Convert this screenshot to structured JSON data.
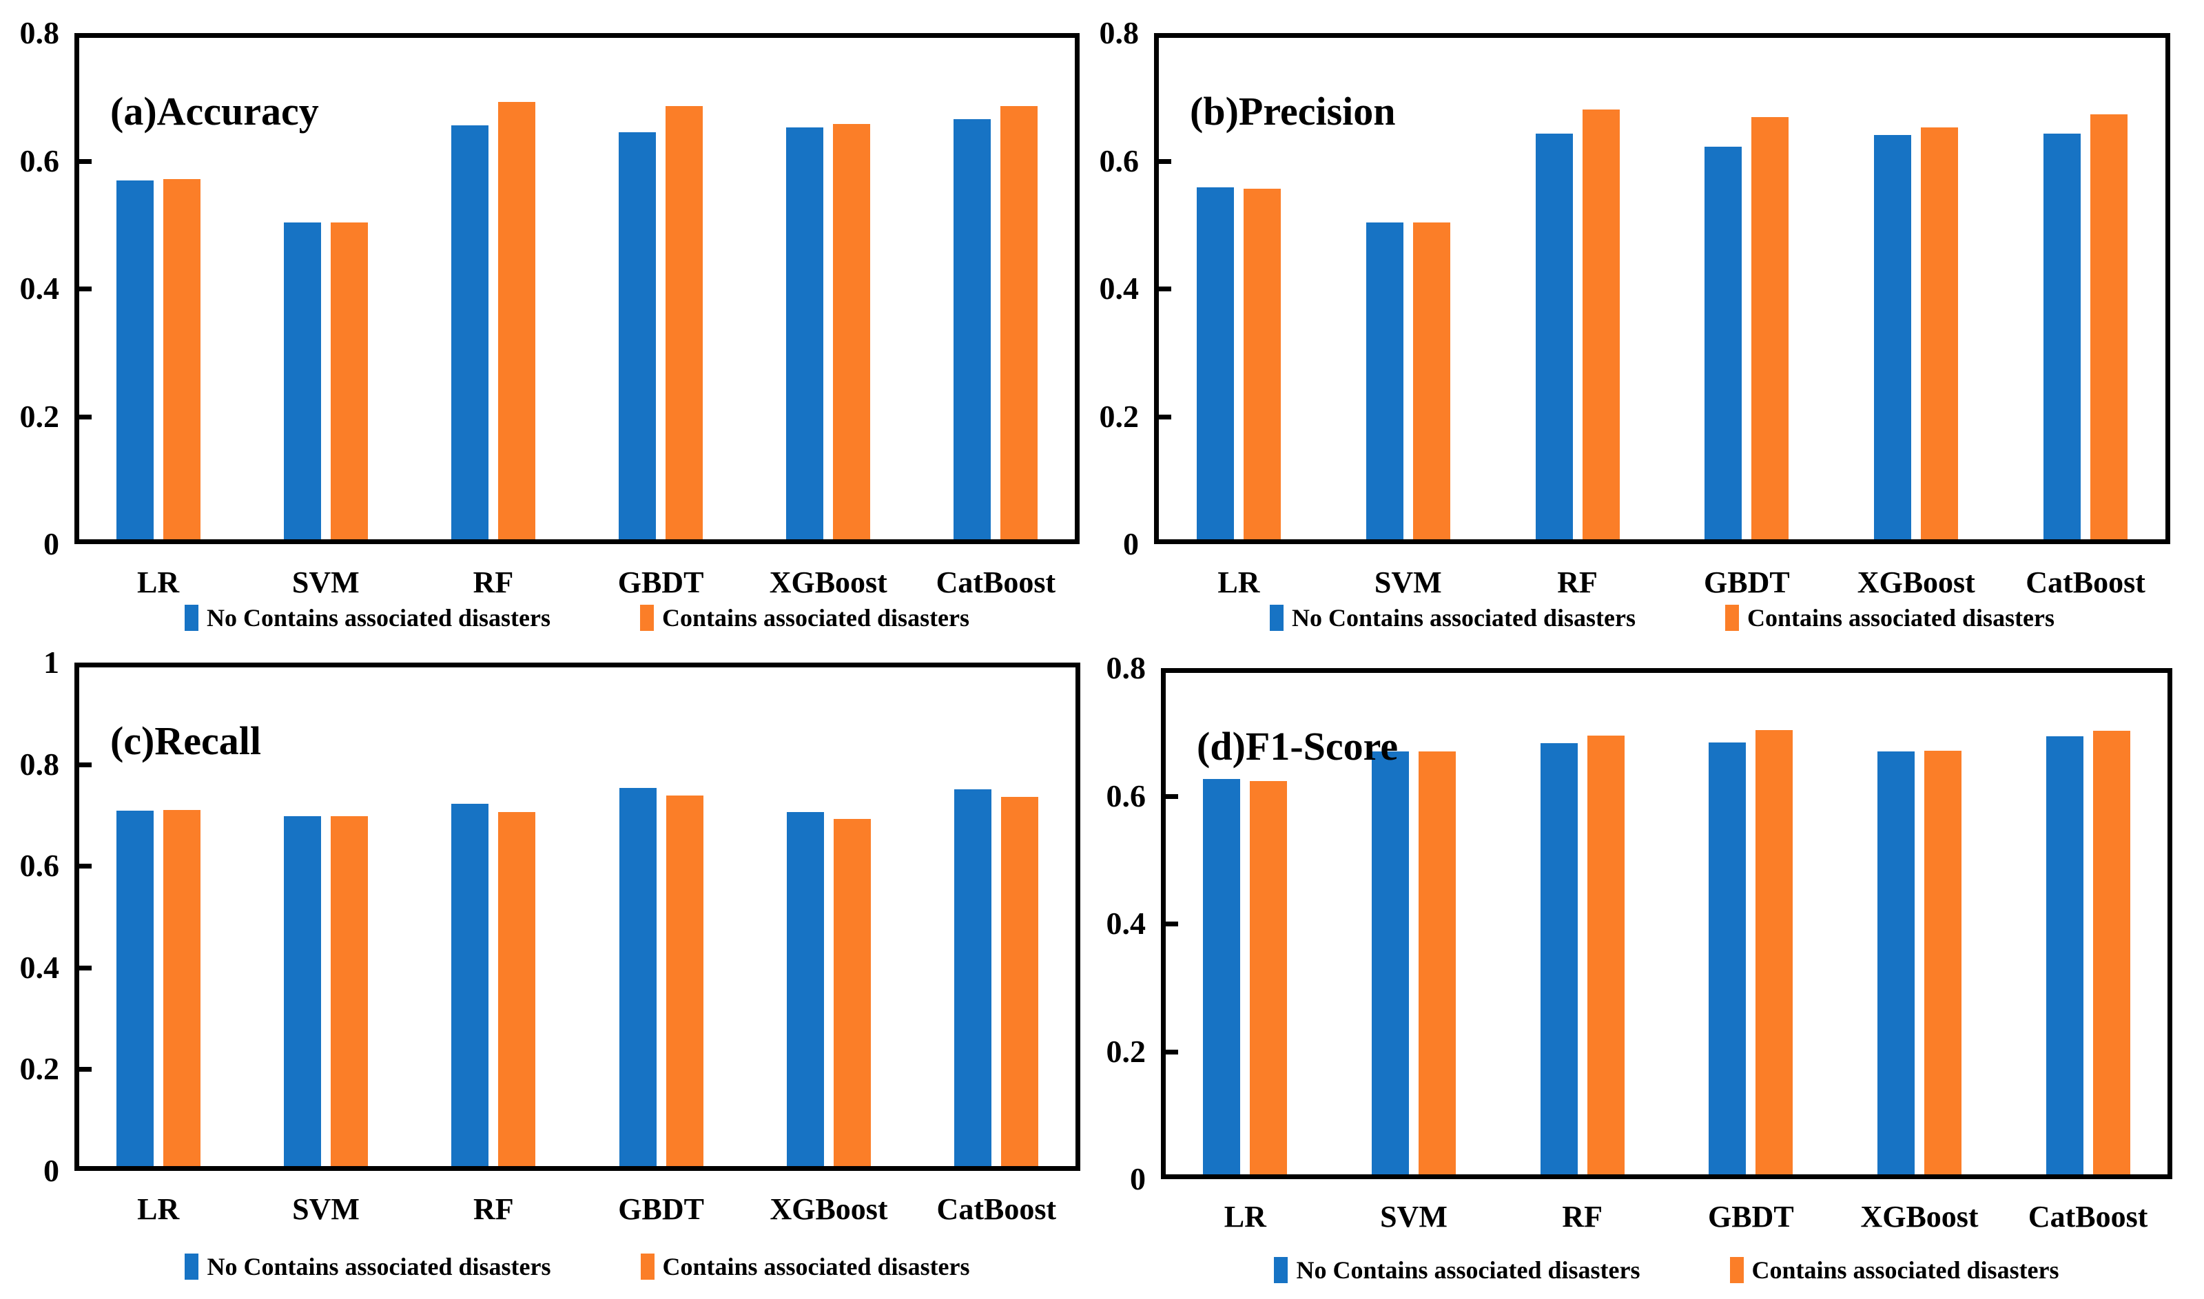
{
  "figure": {
    "background": "#ffffff",
    "axis_color": "#000000",
    "text_color": "#000000"
  },
  "colors": {
    "series1": "#1773C4",
    "series2": "#FB7E28"
  },
  "legend": {
    "series1_label": "No Contains associated disasters",
    "series2_label": "Contains associated disasters"
  },
  "chart_data": [
    {
      "type": "bar",
      "title": "(a)Accuracy",
      "categories": [
        "LR",
        "SVM",
        "RF",
        "GBDT",
        "XGBoost",
        "CatBoost"
      ],
      "series": [
        {
          "name": "No Contains associated disasters",
          "color": "#1773C4",
          "values": [
            0.569,
            0.503,
            0.655,
            0.645,
            0.652,
            0.665
          ]
        },
        {
          "name": "Contains associated disasters",
          "color": "#FB7E28",
          "values": [
            0.571,
            0.503,
            0.692,
            0.686,
            0.658,
            0.686
          ]
        }
      ],
      "xlabel": "",
      "ylabel": "",
      "ylim": [
        0,
        0.8
      ],
      "ytick_values": [
        0,
        0.2,
        0.4,
        0.6,
        0.8
      ],
      "yticks": [
        "0",
        "0.2",
        "0.4",
        "0.6",
        "0.8"
      ],
      "grid": false,
      "legend_position": "bottom"
    },
    {
      "type": "bar",
      "title": "(b)Precision",
      "categories": [
        "LR",
        "SVM",
        "RF",
        "GBDT",
        "XGBoost",
        "CatBoost"
      ],
      "series": [
        {
          "name": "No Contains associated disasters",
          "color": "#1773C4",
          "values": [
            0.558,
            0.503,
            0.643,
            0.622,
            0.64,
            0.643
          ]
        },
        {
          "name": "Contains associated disasters",
          "color": "#FB7E28",
          "values": [
            0.556,
            0.503,
            0.68,
            0.669,
            0.652,
            0.673
          ]
        }
      ],
      "xlabel": "",
      "ylabel": "",
      "ylim": [
        0,
        0.8
      ],
      "ytick_values": [
        0,
        0.2,
        0.4,
        0.6,
        0.8
      ],
      "yticks": [
        "0",
        "0.2",
        "0.4",
        "0.6",
        "0.8"
      ],
      "grid": false,
      "legend_position": "bottom"
    },
    {
      "type": "bar",
      "title": "(c)Recall",
      "categories": [
        "LR",
        "SVM",
        "RF",
        "GBDT",
        "XGBoost",
        "CatBoost"
      ],
      "series": [
        {
          "name": "No Contains associated disasters",
          "color": "#1773C4",
          "values": [
            0.709,
            0.698,
            0.722,
            0.754,
            0.706,
            0.751
          ]
        },
        {
          "name": "Contains associated disasters",
          "color": "#FB7E28",
          "values": [
            0.71,
            0.698,
            0.706,
            0.739,
            0.692,
            0.736
          ]
        }
      ],
      "xlabel": "",
      "ylabel": "",
      "ylim": [
        0,
        1
      ],
      "ytick_values": [
        0,
        0.2,
        0.4,
        0.6,
        0.8,
        1
      ],
      "yticks": [
        "0",
        "0.2",
        "0.4",
        "0.6",
        "0.8",
        "1"
      ],
      "grid": false,
      "legend_position": "bottom"
    },
    {
      "type": "bar",
      "title": "(d)F1-Score",
      "categories": [
        "LR",
        "SVM",
        "RF",
        "GBDT",
        "XGBoost",
        "CatBoost"
      ],
      "series": [
        {
          "name": "No Contains associated disasters",
          "color": "#1773C4",
          "values": [
            0.626,
            0.67,
            0.682,
            0.684,
            0.67,
            0.693
          ]
        },
        {
          "name": "Contains associated disasters",
          "color": "#FB7E28",
          "values": [
            0.623,
            0.67,
            0.694,
            0.703,
            0.671,
            0.702
          ]
        }
      ],
      "xlabel": "",
      "ylabel": "",
      "ylim": [
        0,
        0.8
      ],
      "ytick_values": [
        0,
        0.2,
        0.4,
        0.6,
        0.8
      ],
      "yticks": [
        "0",
        "0.2",
        "0.4",
        "0.6",
        "0.8"
      ],
      "grid": false,
      "legend_position": "bottom"
    }
  ]
}
